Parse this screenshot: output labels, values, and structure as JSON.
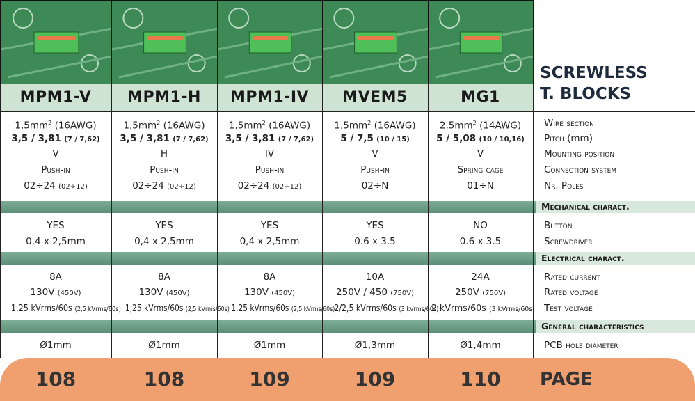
{
  "title": [
    "SCREWLESS",
    "T. BLOCKS"
  ],
  "products": [
    "MPM1-V",
    "MPM1-H",
    "MPM1-IV",
    "MVEM5",
    "MG1"
  ],
  "specs": {
    "rows": [
      {
        "label": "Wire section",
        "cells": [
          {
            "text": "1,5mm",
            "sup": "2",
            "after": "(16AWG)"
          },
          {
            "text": "1,5mm",
            "sup": "2",
            "after": "(16AWG)"
          },
          {
            "text": "1,5mm",
            "sup": "2",
            "after": "(16AWG)"
          },
          {
            "text": "1,5mm",
            "sup": "2",
            "after": "(16AWG)"
          },
          {
            "text": "2,5mm",
            "sup": "2",
            "after": "(14AWG)"
          }
        ]
      },
      {
        "label": "Pitch",
        "label_unit": "(mm)",
        "bold": true,
        "cells": [
          {
            "text": "3,5 / 3,81",
            "small": "(7 / 7,62)"
          },
          {
            "text": "3,5 / 3,81",
            "small": "(7 / 7,62)"
          },
          {
            "text": "3,5 / 3,81",
            "small": "(7 / 7,62)"
          },
          {
            "text": "5 / 7,5",
            "small": "(10 / 15)"
          },
          {
            "text": "5 / 5,08",
            "small": "(10 / 10,16)"
          }
        ]
      },
      {
        "label": "Mounting position",
        "cells": [
          {
            "text": "V"
          },
          {
            "text": "H"
          },
          {
            "text": "IV"
          },
          {
            "text": "V"
          },
          {
            "text": "V"
          }
        ]
      },
      {
        "label": "Connection system",
        "smallcaps": true,
        "cells": [
          {
            "text": "Push-in"
          },
          {
            "text": "Push-in"
          },
          {
            "text": "Push-in"
          },
          {
            "text": "Push-in"
          },
          {
            "text": "Spring cage"
          }
        ]
      },
      {
        "label": "Nr. Poles",
        "cells": [
          {
            "text": "02÷24",
            "small": "(02÷12)"
          },
          {
            "text": "02÷24",
            "small": "(02÷12)"
          },
          {
            "text": "02÷24",
            "small": "(02÷12)"
          },
          {
            "text": "02÷N"
          },
          {
            "text": "01÷N"
          }
        ]
      }
    ]
  },
  "mechanical": {
    "heading": "Mechanical charact.",
    "rows": [
      {
        "label": "Button",
        "cells": [
          {
            "text": "YES"
          },
          {
            "text": "YES"
          },
          {
            "text": "YES"
          },
          {
            "text": "YES"
          },
          {
            "text": "NO"
          }
        ]
      },
      {
        "label": "Screwdriver",
        "cells": [
          {
            "text": "0,4 x 2,5mm"
          },
          {
            "text": "0,4 x 2,5mm"
          },
          {
            "text": "0,4 x 2,5mm"
          },
          {
            "text": "0.6 x 3.5"
          },
          {
            "text": "0.6 x 3.5"
          }
        ]
      }
    ]
  },
  "electrical": {
    "heading": "Electrical charact.",
    "rows": [
      {
        "label": "Rated current",
        "cells": [
          {
            "text": "8A"
          },
          {
            "text": "8A"
          },
          {
            "text": "8A"
          },
          {
            "text": "10A"
          },
          {
            "text": "24A"
          }
        ]
      },
      {
        "label": "Rated voltage",
        "cells": [
          {
            "text": "130V",
            "small": "(450V)"
          },
          {
            "text": "130V",
            "small": "(450V)"
          },
          {
            "text": "130V",
            "small": "(450V)"
          },
          {
            "text": "250V / 450",
            "small": "(750V)"
          },
          {
            "text": "250V",
            "small": "(750V)"
          }
        ]
      },
      {
        "label": "Test voltage",
        "cells": [
          {
            "text": "1,25 kVrms/60s",
            "small": "(2,5 kVrms/60s)"
          },
          {
            "text": "1,25 kVrms/60s",
            "small": "(2,5 kVrms/60s)"
          },
          {
            "text": "1,25 kVrms/60s",
            "small": "(2,5 kVrms/60s)"
          },
          {
            "text": "2/2,5 kVrms/60s",
            "small": "(3 kVrms/60s)"
          },
          {
            "text": "2 kVrms/60s",
            "small": "(3 kVrms/60s)"
          }
        ]
      }
    ]
  },
  "general": {
    "heading": "General characteristics",
    "rows": [
      {
        "label": "PCB hole diameter",
        "cells": [
          {
            "text": "Ø1mm"
          },
          {
            "text": "Ø1mm"
          },
          {
            "text": "Ø1mm"
          },
          {
            "text": "Ø1,3mm"
          },
          {
            "text": "Ø1,4mm"
          }
        ]
      }
    ]
  },
  "footer": {
    "label": "PAGE",
    "pages": [
      108,
      108,
      109,
      109,
      110
    ]
  }
}
